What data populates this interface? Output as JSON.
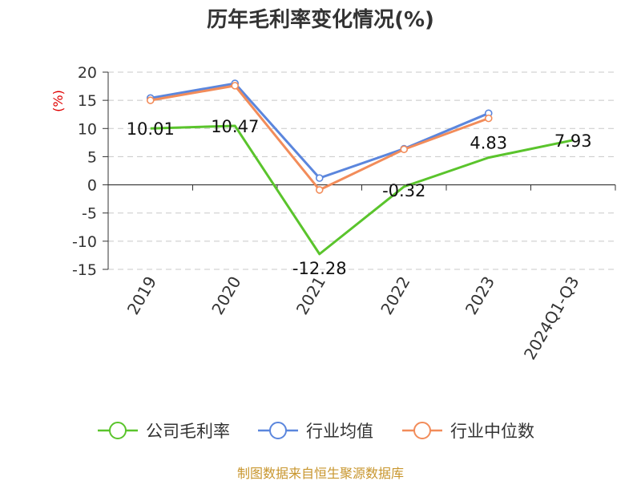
{
  "chart_data": {
    "type": "line",
    "title": "历年毛利率变化情况(%)",
    "ylabel": "(%)",
    "categories": [
      "2019",
      "2020",
      "2021",
      "2022",
      "2023",
      "2024Q1-Q3"
    ],
    "ylim": [
      -15,
      20
    ],
    "yticks": [
      "20",
      "15",
      "10",
      "5",
      "0",
      "-5",
      "-10",
      "-15"
    ],
    "grid": true,
    "legend_position": "bottom",
    "series": [
      {
        "name": "公司毛利率",
        "color": "#5ac42c",
        "values": [
          10.01,
          10.47,
          -12.28,
          -0.32,
          4.83,
          7.93
        ],
        "labels": [
          "10.01",
          "10.47",
          "-12.28",
          "-0.32",
          "4.83",
          "7.93"
        ],
        "marker": false
      },
      {
        "name": "行业均值",
        "color": "#5b86dd",
        "values": [
          15.4,
          18.0,
          1.2,
          6.4,
          12.7,
          null
        ],
        "marker": true
      },
      {
        "name": "行业中位数",
        "color": "#f28c5a",
        "values": [
          15.0,
          17.6,
          -0.9,
          6.3,
          11.8,
          null
        ],
        "marker": true
      }
    ]
  },
  "footer": {
    "source": "制图数据来自恒生聚源数据库"
  }
}
